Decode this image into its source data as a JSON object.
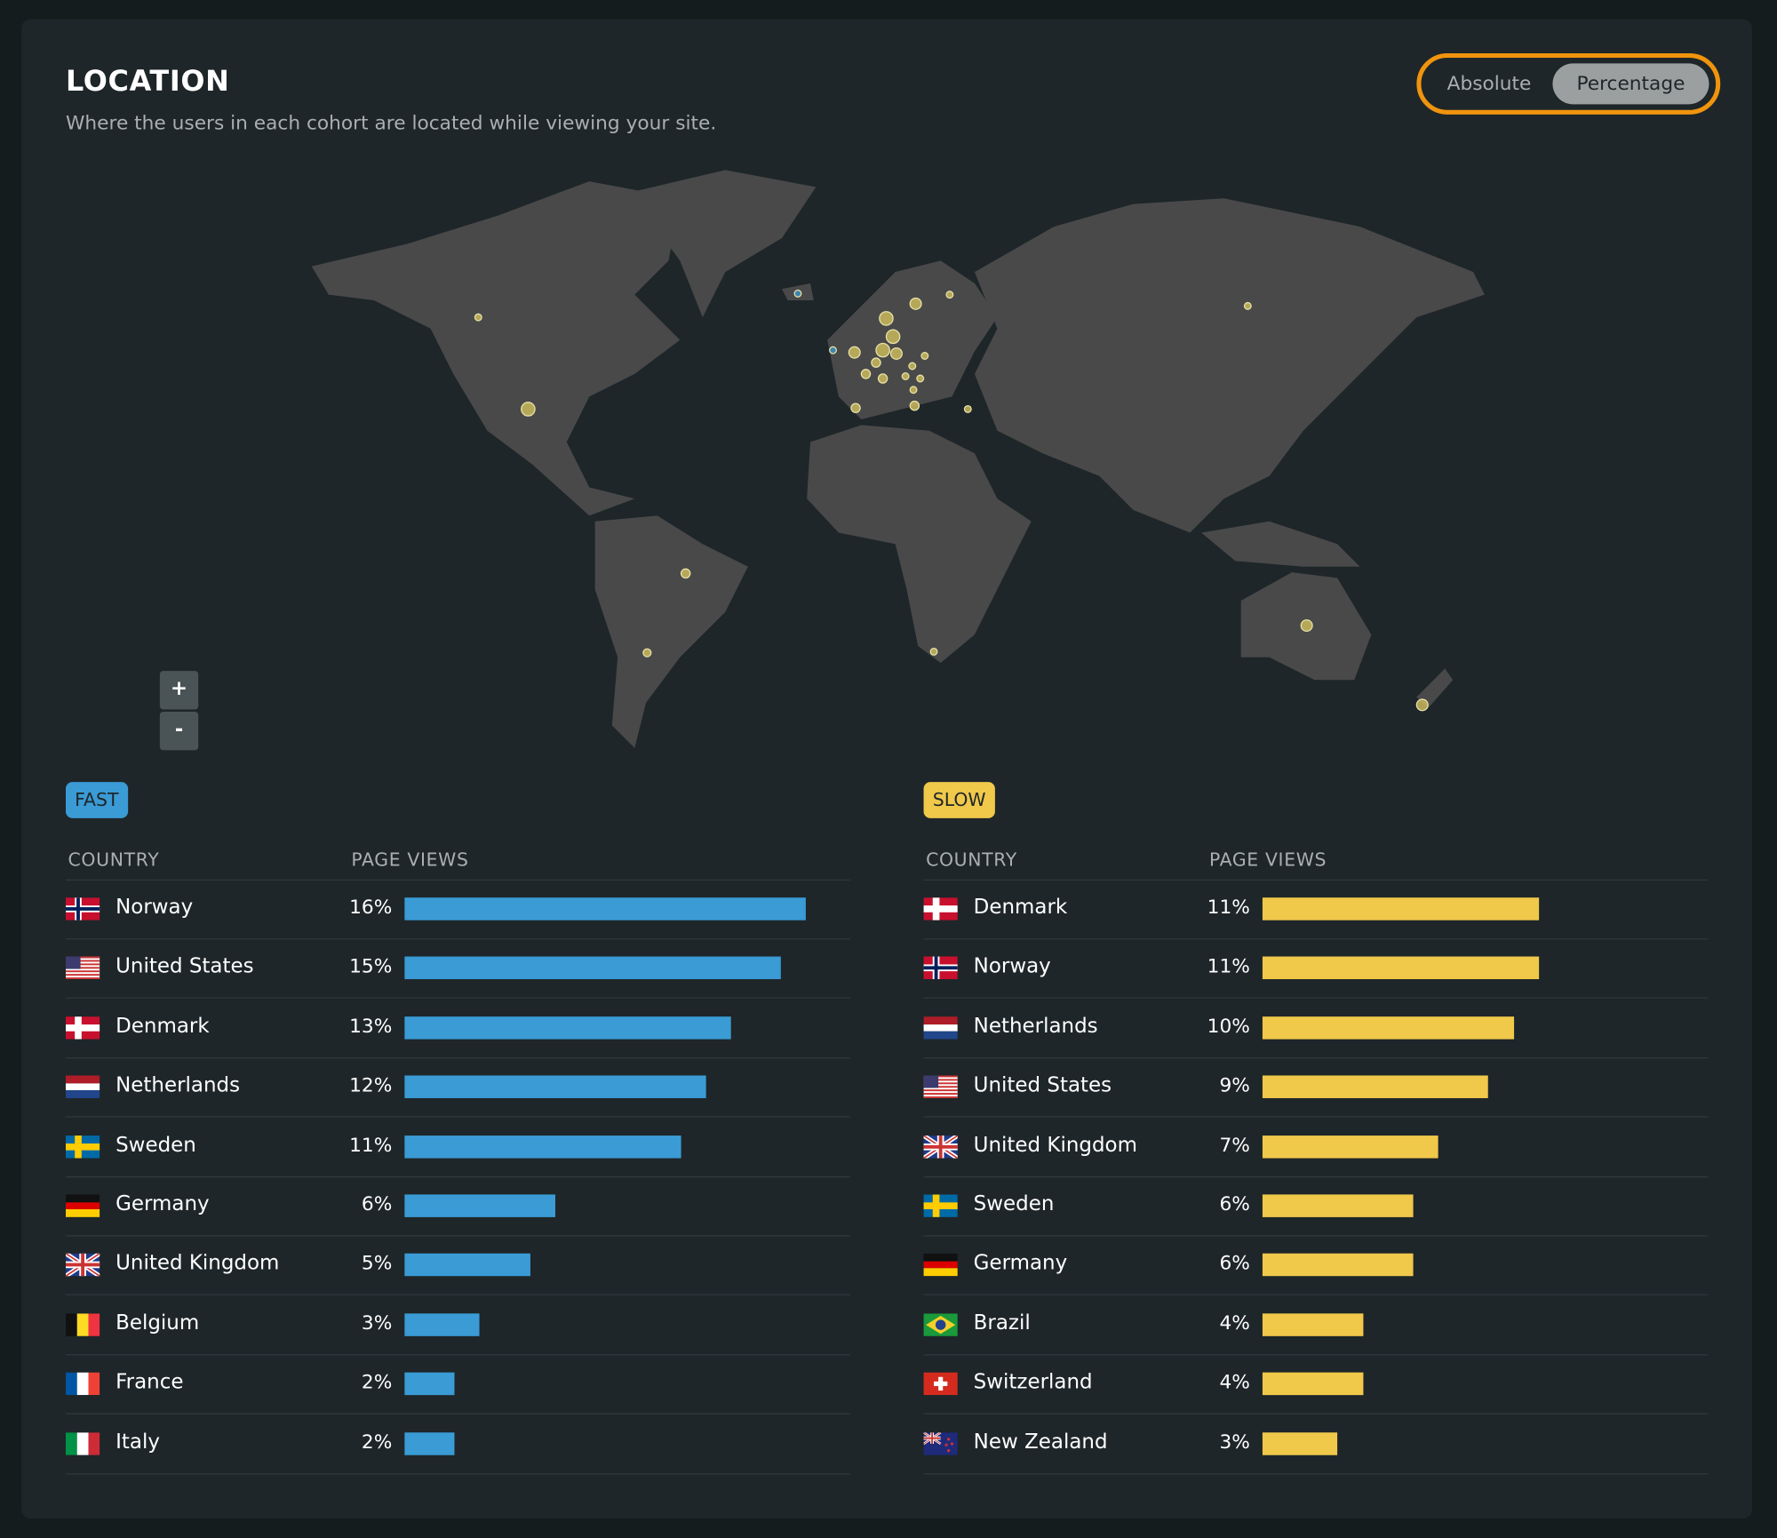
{
  "header": {
    "title": "LOCATION",
    "subtitle": "Where the users in each cohort are located while viewing your site."
  },
  "toggle": {
    "options": [
      "Absolute",
      "Percentage"
    ],
    "selected": 1
  },
  "zoom": {
    "in": "+",
    "out": "-"
  },
  "tables": [
    {
      "badge": "FAST",
      "color": "#3a9bd5",
      "columns": [
        "COUNTRY",
        "PAGE VIEWS"
      ],
      "rows": [
        {
          "country": "Norway",
          "value": 16,
          "value_label": "16%"
        },
        {
          "country": "United States",
          "value": 15,
          "value_label": "15%"
        },
        {
          "country": "Denmark",
          "value": 13,
          "value_label": "13%"
        },
        {
          "country": "Netherlands",
          "value": 12,
          "value_label": "12%"
        },
        {
          "country": "Sweden",
          "value": 11,
          "value_label": "11%"
        },
        {
          "country": "Germany",
          "value": 6,
          "value_label": "6%"
        },
        {
          "country": "United Kingdom",
          "value": 5,
          "value_label": "5%"
        },
        {
          "country": "Belgium",
          "value": 3,
          "value_label": "3%"
        },
        {
          "country": "France",
          "value": 2,
          "value_label": "2%"
        },
        {
          "country": "Italy",
          "value": 2,
          "value_label": "2%"
        }
      ]
    },
    {
      "badge": "SLOW",
      "color": "#f0c84a",
      "columns": [
        "COUNTRY",
        "PAGE VIEWS"
      ],
      "rows": [
        {
          "country": "Denmark",
          "value": 11,
          "value_label": "11%"
        },
        {
          "country": "Norway",
          "value": 11,
          "value_label": "11%"
        },
        {
          "country": "Netherlands",
          "value": 10,
          "value_label": "10%"
        },
        {
          "country": "United States",
          "value": 9,
          "value_label": "9%"
        },
        {
          "country": "United Kingdom",
          "value": 7,
          "value_label": "7%"
        },
        {
          "country": "Sweden",
          "value": 6,
          "value_label": "6%"
        },
        {
          "country": "Germany",
          "value": 6,
          "value_label": "6%"
        },
        {
          "country": "Brazil",
          "value": 4,
          "value_label": "4%"
        },
        {
          "country": "Switzerland",
          "value": 4,
          "value_label": "4%"
        },
        {
          "country": "New Zealand",
          "value": 3,
          "value_label": "3%"
        }
      ]
    }
  ]
}
